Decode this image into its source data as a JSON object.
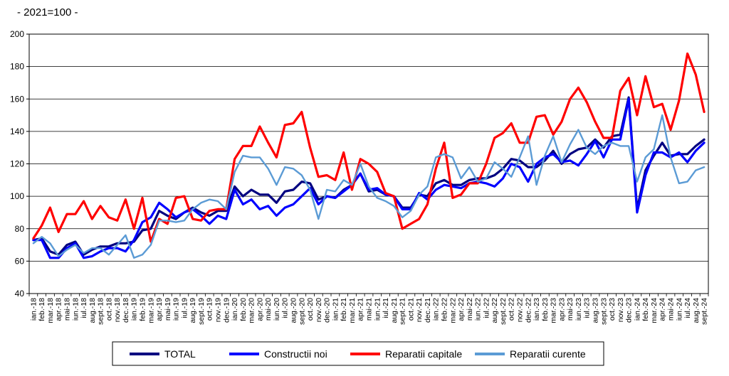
{
  "chart_data": {
    "type": "line",
    "title": "",
    "subtitle": "- 2021=100 -",
    "xlabel": "",
    "ylabel": "",
    "ylim": [
      40,
      200
    ],
    "yticks": [
      40,
      60,
      80,
      100,
      120,
      140,
      160,
      180,
      200
    ],
    "grid": true,
    "legend_position": "bottom",
    "categories": [
      "ian.-18",
      "feb.-18",
      "mar.-18",
      "apr.-18",
      "mai-18",
      "iun.-18",
      "iul.-18",
      "aug.-18",
      "sept.-18",
      "oct.-18",
      "nov.-18",
      "dec.-18",
      "ian.-19",
      "feb.-19",
      "mar.-19",
      "apr.-19",
      "mai-19",
      "iun.-19",
      "iul.-19",
      "aug.-19",
      "sept.-19",
      "oct.-19",
      "nov.-19",
      "dec.-19",
      "ian.-20",
      "feb.-20",
      "mar.-20",
      "apr.-20",
      "mai-20",
      "iun.-20",
      "iul.-20",
      "aug.-20",
      "sept.-20",
      "oct.-20",
      "nov.-20",
      "dec.-20",
      "ian.-21",
      "feb.-21",
      "mar.-21",
      "apr.-21",
      "mai-21",
      "iun.-21",
      "iul.-21",
      "aug.-21",
      "sept.-21",
      "oct.-21",
      "nov.-21",
      "dec.-21",
      "ian.-22",
      "feb.-22",
      "mar.-22",
      "apr.-22",
      "mai-22",
      "iun.-22",
      "iul.-22",
      "aug.-22",
      "sept.-22",
      "oct.-22",
      "nov.-22",
      "dec.-22",
      "ian.-23",
      "feb.-23",
      "mar.-23",
      "apr.-23",
      "mai-23",
      "iun.-23",
      "iul.-23",
      "aug.-23",
      "sept.-23",
      "oct.-23",
      "nov.-23",
      "dec.-23",
      "ian.-24",
      "feb.-24",
      "mar.-24",
      "apr.-24",
      "mai-24",
      "iun.-24",
      "iul.-24",
      "aug.-24",
      "sept.-24"
    ],
    "series": [
      {
        "name": "TOTAL",
        "color": "#000080",
        "width": 3.2,
        "values": [
          73,
          74,
          66,
          64,
          70,
          72,
          64,
          67,
          69,
          69,
          71,
          71,
          72,
          79,
          80,
          91,
          88,
          86,
          90,
          93,
          90,
          88,
          91,
          91,
          106,
          100,
          104,
          101,
          101,
          96,
          103,
          104,
          109,
          108,
          98,
          100,
          99,
          104,
          107,
          114,
          103,
          104,
          101,
          100,
          93,
          93,
          101,
          100,
          108,
          110,
          107,
          107,
          110,
          111,
          111,
          113,
          117,
          123,
          122,
          118,
          118,
          122,
          128,
          120,
          126,
          129,
          130,
          135,
          130,
          137,
          138,
          161,
          92,
          116,
          125,
          133,
          125,
          126,
          126,
          131,
          135
        ]
      },
      {
        "name": "Constructii noi",
        "color": "#0000ff",
        "width": 3.2,
        "values": [
          73,
          73,
          62,
          62,
          68,
          71,
          62,
          63,
          66,
          68,
          68,
          66,
          73,
          84,
          87,
          96,
          92,
          87,
          90,
          92,
          88,
          83,
          88,
          86,
          104,
          95,
          98,
          92,
          94,
          88,
          93,
          95,
          100,
          105,
          95,
          100,
          99,
          103,
          107,
          114,
          104,
          105,
          101,
          100,
          92,
          92,
          102,
          98,
          104,
          107,
          106,
          105,
          108,
          109,
          108,
          106,
          111,
          120,
          118,
          109,
          120,
          124,
          126,
          121,
          122,
          119,
          126,
          134,
          124,
          135,
          135,
          160,
          90,
          113,
          127,
          127,
          124,
          127,
          121,
          128,
          133
        ]
      },
      {
        "name": "Reparatii capitale",
        "color": "#ff0000",
        "width": 3.2,
        "values": [
          74,
          82,
          93,
          78,
          89,
          89,
          97,
          86,
          94,
          87,
          85,
          98,
          80,
          99,
          72,
          86,
          83,
          99,
          100,
          86,
          85,
          91,
          92,
          92,
          123,
          131,
          131,
          143,
          133,
          124,
          144,
          145,
          152,
          130,
          112,
          113,
          110,
          127,
          104,
          123,
          120,
          115,
          102,
          100,
          80,
          83,
          86,
          95,
          117,
          133,
          99,
          101,
          108,
          108,
          120,
          136,
          139,
          145,
          133,
          133,
          149,
          150,
          138,
          146,
          160,
          167,
          158,
          146,
          136,
          136,
          165,
          173,
          150,
          174,
          155,
          157,
          141,
          159,
          188,
          175,
          152
        ]
      },
      {
        "name": "Reparatii curente",
        "color": "#5b9bd5",
        "width": 2.4,
        "values": [
          71,
          75,
          71,
          63,
          67,
          70,
          65,
          68,
          68,
          64,
          70,
          76,
          62,
          64,
          70,
          85,
          85,
          84,
          85,
          92,
          96,
          98,
          97,
          92,
          115,
          125,
          124,
          124,
          117,
          107,
          118,
          117,
          113,
          104,
          86,
          104,
          103,
          110,
          107,
          120,
          106,
          99,
          97,
          94,
          87,
          91,
          101,
          106,
          124,
          126,
          124,
          111,
          118,
          109,
          111,
          121,
          117,
          112,
          124,
          137,
          107,
          125,
          137,
          121,
          132,
          141,
          130,
          126,
          131,
          133,
          131,
          131,
          109,
          124,
          129,
          150,
          124,
          108,
          109,
          116,
          118
        ]
      }
    ]
  }
}
